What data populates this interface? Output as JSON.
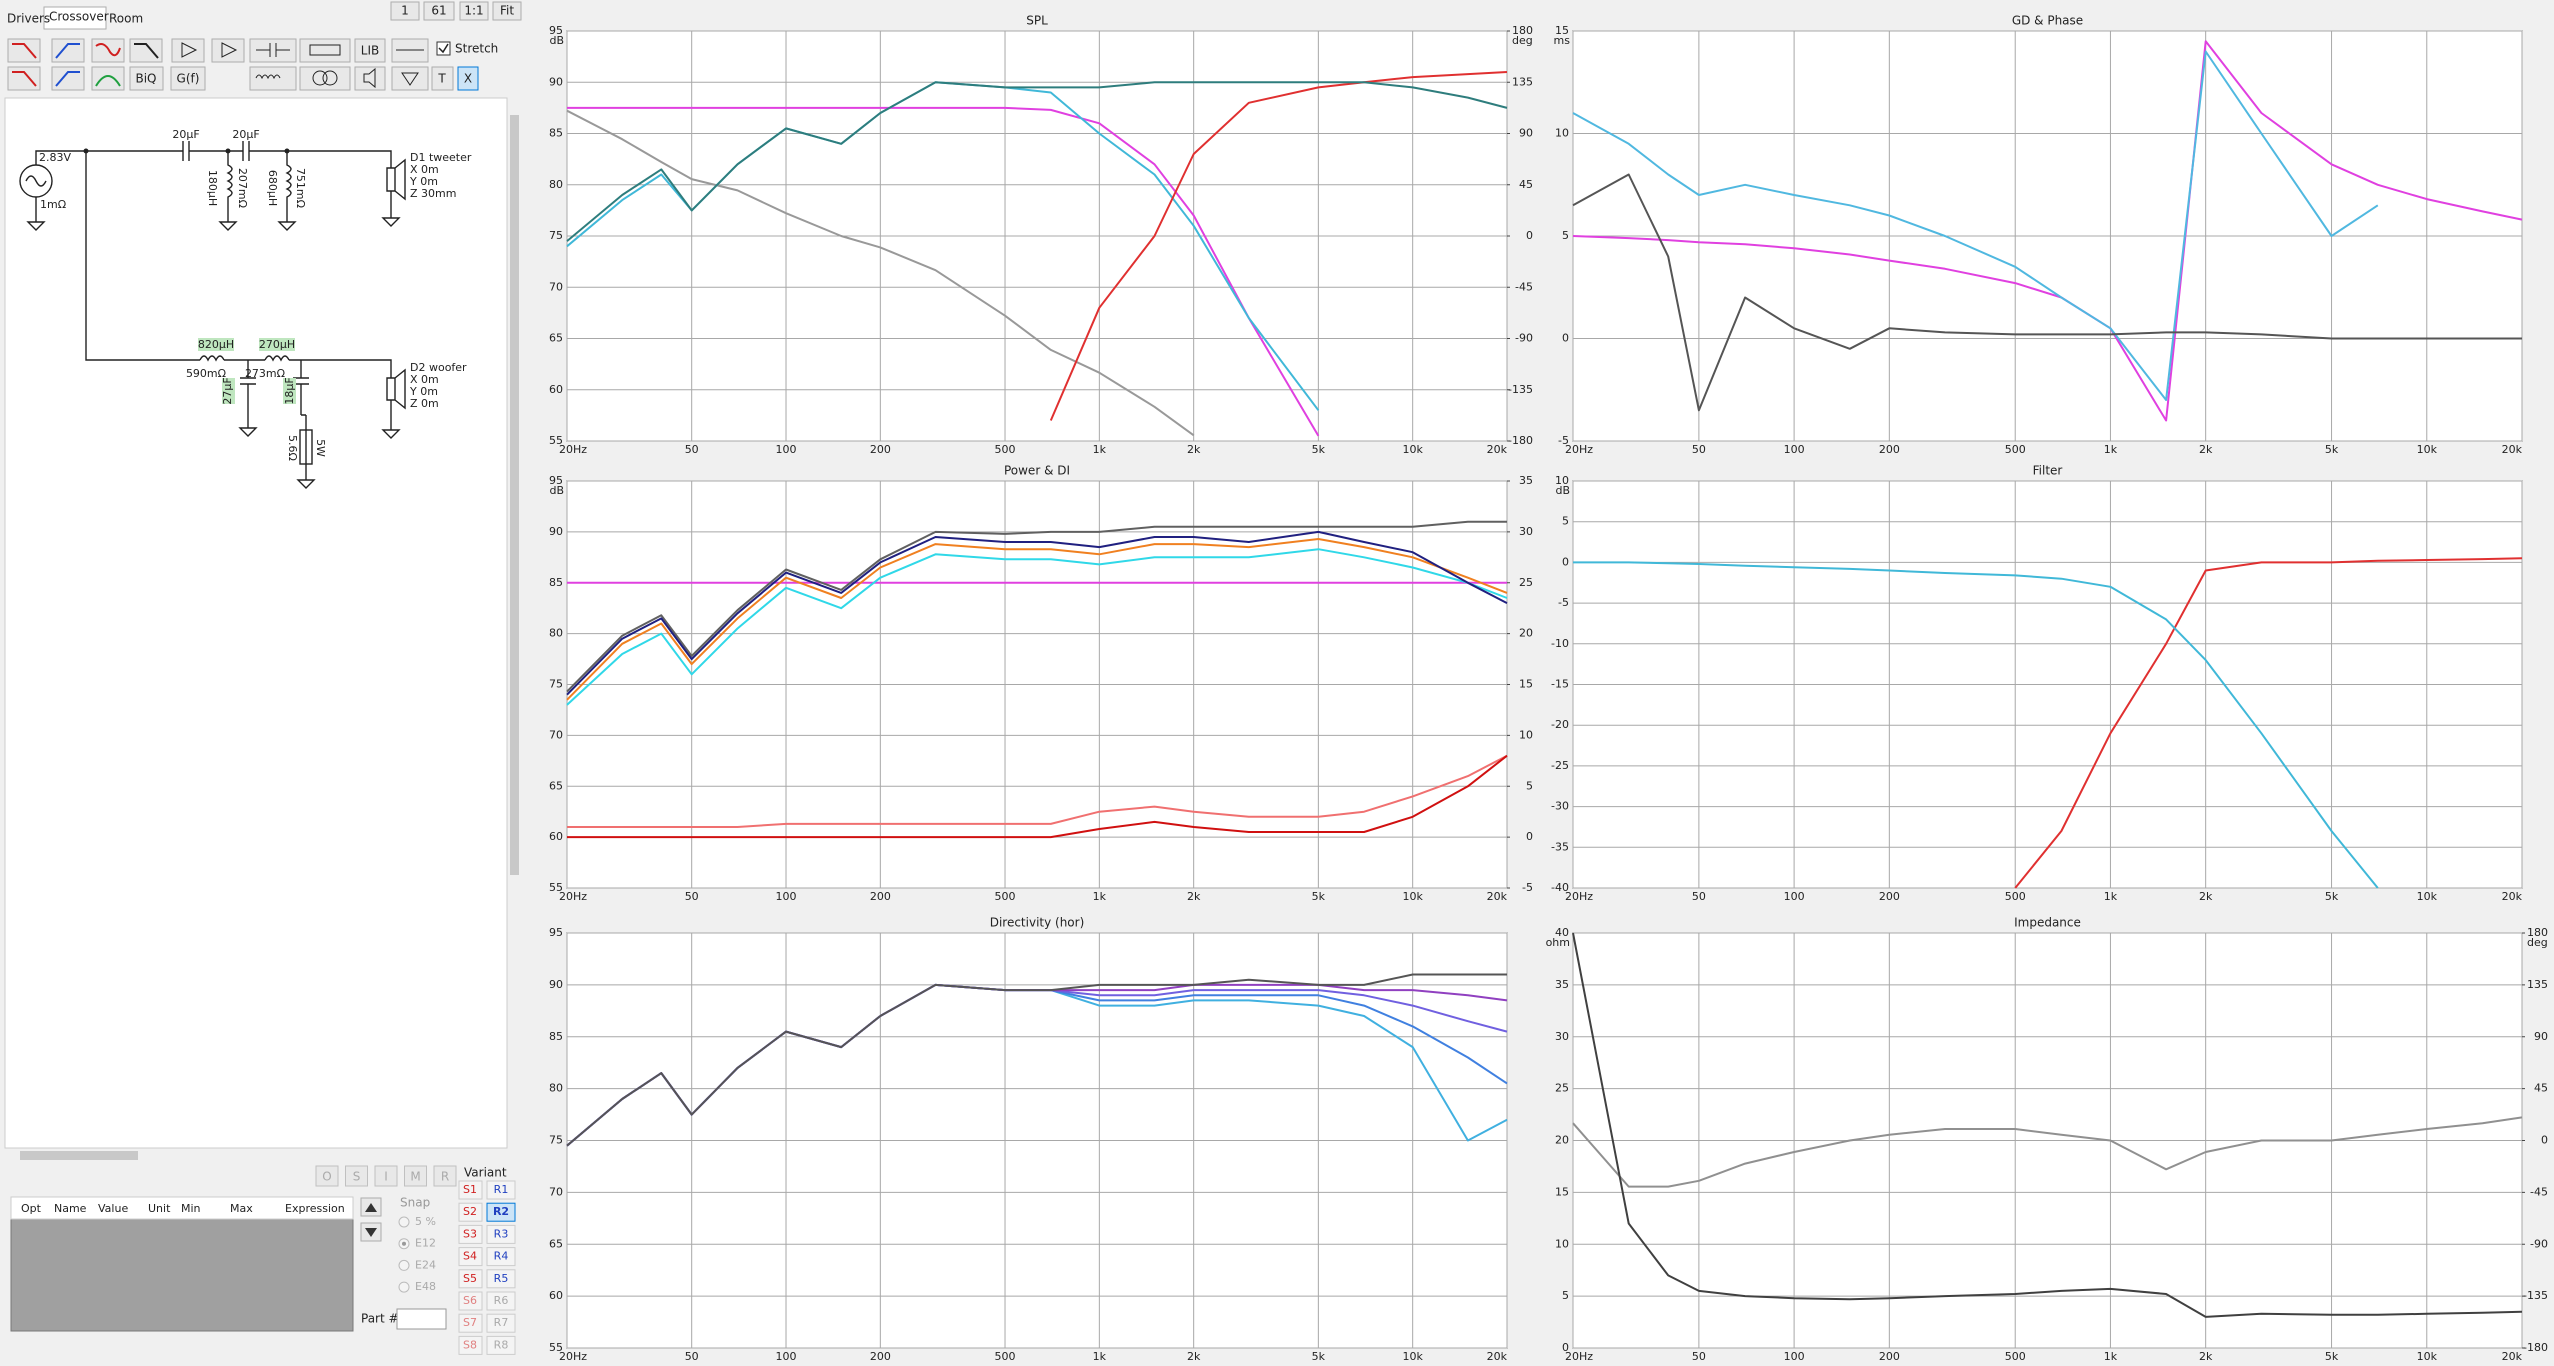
{
  "ui": {
    "tabs": [
      "Drivers",
      "Crossover",
      "Room"
    ],
    "view_buttons": [
      "1",
      "61",
      "1:1",
      "Fit"
    ],
    "stretch": "Stretch",
    "toolbar_buttons": [
      "LIB",
      "BiQ",
      "G(f)",
      "T",
      "X"
    ],
    "circuit": {
      "source": "2.83V",
      "source_r": "1mΩ",
      "c1": "20µF",
      "c2": "20µF",
      "l1": "180µH",
      "l1_r": "207mΩ",
      "l2": "680µH",
      "l2_r": "751mΩ",
      "d1": {
        "name": "D1 tweeter",
        "x": "X 0m",
        "y": "Y 0m",
        "z": "Z 30mm"
      },
      "l3": "820µH",
      "l3_r": "590mΩ",
      "l4": "270µH",
      "l4_r": "273mΩ",
      "c3": "27µF",
      "c4": "18µF",
      "r1": "5.6Ω",
      "r1_p": "5W",
      "d2": {
        "name": "D2 woofer",
        "x": "X 0m",
        "y": "Y 0m",
        "z": "Z 0m"
      }
    },
    "opt_buttons": [
      "O",
      "S",
      "I",
      "M",
      "R"
    ],
    "table_headers": [
      "Opt",
      "Name",
      "Value",
      "Unit",
      "Min",
      "Max",
      "Expression"
    ],
    "variant": "Variant",
    "s_buttons": [
      "S1",
      "S2",
      "S3",
      "S4",
      "S5",
      "S6",
      "S7",
      "S8"
    ],
    "r_buttons": [
      "R1",
      "R2",
      "R3",
      "R4",
      "R5",
      "R6",
      "R7",
      "R8"
    ],
    "snap": "Snap",
    "snap_options": [
      "5 %",
      "E12",
      "E24",
      "E48"
    ],
    "part": "Part #"
  },
  "chart_data": [
    {
      "type": "line",
      "title": "SPL",
      "y_unit": "dB",
      "y2_unit": "deg",
      "xscale": "log",
      "xlim": [
        20,
        20000
      ],
      "xticks": [
        {
          "value": 20,
          "label": "20Hz"
        },
        50,
        100,
        200,
        500,
        {
          "value": 1000,
          "label": "1k"
        },
        {
          "value": 2000,
          "label": "2k"
        },
        {
          "value": 5000,
          "label": "5k"
        },
        {
          "value": 10000,
          "label": "10k"
        },
        {
          "value": 20000,
          "label": "20k"
        }
      ],
      "ylim": [
        55,
        95
      ],
      "yticks": [
        55,
        60,
        65,
        70,
        75,
        80,
        85,
        90,
        95
      ],
      "y2lim": [
        -180,
        180
      ],
      "y2ticks": [
        -180,
        -135,
        -90,
        -45,
        0,
        45,
        90,
        135,
        180
      ],
      "grid": true,
      "x": [
        20,
        30,
        40,
        50,
        70,
        100,
        150,
        200,
        300,
        500,
        700,
        1000,
        1500,
        2000,
        3000,
        5000,
        7000,
        10000,
        15000,
        20000
      ],
      "series": [
        {
          "color": "#999999",
          "axis": "y2",
          "values": [
            110,
            85,
            65,
            50,
            40,
            20,
            0,
            -10,
            -30,
            -70,
            -100,
            -120,
            -150,
            -175,
            null,
            null,
            null,
            null,
            null,
            null
          ]
        },
        {
          "color": "#e040e0",
          "values": [
            87.5,
            87.5,
            87.5,
            87.5,
            87.5,
            87.5,
            87.5,
            87.5,
            87.5,
            87.5,
            87.3,
            86,
            82,
            77,
            67,
            55.5,
            null,
            null,
            null,
            null
          ]
        },
        {
          "color": "#40b8d8",
          "values": [
            74,
            78.5,
            81,
            77.5,
            82,
            85.5,
            84,
            87,
            90,
            89.5,
            89,
            85,
            81,
            76,
            67,
            58,
            null,
            null,
            null,
            null
          ]
        },
        {
          "color": "#e03030",
          "values": [
            null,
            null,
            null,
            null,
            null,
            null,
            null,
            null,
            null,
            null,
            57,
            68,
            75,
            83,
            88,
            89.5,
            90,
            90.5,
            90.8,
            91
          ]
        },
        {
          "color": "#2e7d7d",
          "values": [
            74.5,
            79,
            81.5,
            77.5,
            82,
            85.5,
            84,
            87,
            90,
            89.5,
            89.5,
            89.5,
            90,
            90,
            90,
            90,
            90,
            89.5,
            88.5,
            87.5
          ]
        }
      ]
    },
    {
      "type": "line",
      "title": "GD & Phase",
      "y_unit": "ms",
      "xscale": "log",
      "xlim": [
        20,
        20000
      ],
      "xticks": [
        {
          "value": 20,
          "label": "20Hz"
        },
        50,
        100,
        200,
        500,
        {
          "value": 1000,
          "label": "1k"
        },
        {
          "value": 2000,
          "label": "2k"
        },
        {
          "value": 5000,
          "label": "5k"
        },
        {
          "value": 10000,
          "label": "10k"
        },
        {
          "value": 20000,
          "label": "20k"
        }
      ],
      "ylim": [
        -5,
        15
      ],
      "yticks": [
        -5,
        0,
        5,
        10,
        15
      ],
      "grid": true,
      "x": [
        20,
        30,
        40,
        50,
        70,
        100,
        150,
        200,
        300,
        500,
        700,
        1000,
        1500,
        2000,
        3000,
        5000,
        7000,
        10000,
        15000,
        20000
      ],
      "series": [
        {
          "color": "#e040e0",
          "values": [
            5,
            4.9,
            4.8,
            4.7,
            4.6,
            4.4,
            4.1,
            3.8,
            3.4,
            2.7,
            2,
            0.5,
            -4,
            14.5,
            11,
            8.5,
            7.5,
            6.8,
            6.2,
            5.8
          ]
        },
        {
          "color": "#50b8e0",
          "values": [
            11,
            9.5,
            8,
            7,
            7.5,
            7,
            6.5,
            6,
            5,
            3.5,
            2,
            0.5,
            -3,
            14,
            10,
            5,
            6.5,
            null,
            null,
            null
          ]
        },
        {
          "color": "#555555",
          "values": [
            6.5,
            8,
            4,
            -3.5,
            2,
            0.5,
            -0.5,
            0.5,
            0.3,
            0.2,
            0.2,
            0.2,
            0.3,
            0.3,
            0.2,
            0,
            0,
            0,
            0,
            0
          ]
        }
      ]
    },
    {
      "type": "line",
      "title": "Power & DI",
      "y_unit": "dB",
      "xscale": "log",
      "xlim": [
        20,
        20000
      ],
      "xticks": [
        {
          "value": 20,
          "label": "20Hz"
        },
        50,
        100,
        200,
        500,
        {
          "value": 1000,
          "label": "1k"
        },
        {
          "value": 2000,
          "label": "2k"
        },
        {
          "value": 5000,
          "label": "5k"
        },
        {
          "value": 10000,
          "label": "10k"
        },
        {
          "value": 20000,
          "label": "20k"
        }
      ],
      "ylim": [
        55,
        95
      ],
      "yticks": [
        55,
        60,
        65,
        70,
        75,
        80,
        85,
        90,
        95
      ],
      "y2lim": [
        -5,
        35
      ],
      "y2ticks": [
        -5,
        0,
        5,
        10,
        15,
        20,
        25,
        30,
        35
      ],
      "grid": true,
      "x": [
        20,
        30,
        40,
        50,
        70,
        100,
        150,
        200,
        300,
        500,
        700,
        1000,
        1500,
        2000,
        3000,
        5000,
        7000,
        10000,
        15000,
        20000
      ],
      "series": [
        {
          "color": "#e040e0",
          "values": [
            85,
            85,
            85,
            85,
            85,
            85,
            85,
            85,
            85,
            85,
            85,
            85,
            85,
            85,
            85,
            85,
            85,
            85,
            85,
            85
          ]
        },
        {
          "color": "#f07070",
          "axis": "y2",
          "values": [
            1,
            1,
            1,
            1,
            1,
            1.3,
            1.3,
            1.3,
            1.3,
            1.3,
            1.3,
            2.5,
            3,
            2.5,
            2,
            2,
            2.5,
            4,
            6,
            8
          ]
        },
        {
          "color": "#d01010",
          "axis": "y2",
          "values": [
            0,
            0,
            0,
            0,
            0,
            0,
            0,
            0,
            0,
            0,
            0,
            0.8,
            1.5,
            1,
            0.5,
            0.5,
            0.5,
            2,
            5,
            8
          ]
        },
        {
          "color": "#30d8e8",
          "values": [
            73,
            78,
            80,
            76,
            80.5,
            84.5,
            82.5,
            85.5,
            87.8,
            87.3,
            87.3,
            86.8,
            87.5,
            87.5,
            87.5,
            88.3,
            87.5,
            86.5,
            85,
            83.5
          ]
        },
        {
          "color": "#f08020",
          "values": [
            73.5,
            79,
            81,
            77,
            81.5,
            85.5,
            83.5,
            86.5,
            88.8,
            88.3,
            88.3,
            87.8,
            88.8,
            88.8,
            88.5,
            89.3,
            88.5,
            87.5,
            85.5,
            84
          ]
        },
        {
          "color": "#606060",
          "values": [
            74.3,
            79.8,
            81.8,
            77.8,
            82.3,
            86.3,
            84.3,
            87.3,
            90,
            89.8,
            90,
            90,
            90.5,
            90.5,
            90.5,
            90.5,
            90.5,
            90.5,
            91,
            91
          ]
        },
        {
          "color": "#202080",
          "values": [
            74,
            79.5,
            81.5,
            77.5,
            82,
            86,
            84,
            87,
            89.5,
            89,
            89,
            88.5,
            89.5,
            89.5,
            89,
            90,
            89,
            88,
            85,
            83
          ]
        }
      ]
    },
    {
      "type": "line",
      "title": "Filter",
      "y_unit": "dB",
      "xscale": "log",
      "xlim": [
        20,
        20000
      ],
      "xticks": [
        {
          "value": 20,
          "label": "20Hz"
        },
        50,
        100,
        200,
        500,
        {
          "value": 1000,
          "label": "1k"
        },
        {
          "value": 2000,
          "label": "2k"
        },
        {
          "value": 5000,
          "label": "5k"
        },
        {
          "value": 10000,
          "label": "10k"
        },
        {
          "value": 20000,
          "label": "20k"
        }
      ],
      "ylim": [
        -40,
        10
      ],
      "yticks": [
        -40,
        -35,
        -30,
        -25,
        -20,
        -15,
        -10,
        -5,
        0,
        5,
        10
      ],
      "grid": true,
      "x": [
        20,
        30,
        40,
        50,
        70,
        100,
        150,
        200,
        300,
        500,
        700,
        1000,
        1500,
        2000,
        3000,
        5000,
        7000,
        10000,
        15000,
        20000
      ],
      "series": [
        {
          "color": "#e03030",
          "values": [
            null,
            null,
            null,
            null,
            null,
            null,
            null,
            null,
            null,
            -40,
            -33,
            -21,
            -10,
            -1,
            0,
            0,
            0.2,
            0.3,
            0.4,
            0.5
          ]
        },
        {
          "color": "#40b8d8",
          "values": [
            0,
            0,
            -0.1,
            -0.2,
            -0.4,
            -0.6,
            -0.8,
            -1,
            -1.3,
            -1.6,
            -2,
            -3,
            -7,
            -12,
            -21,
            -33,
            -40,
            null,
            null,
            null
          ]
        }
      ]
    },
    {
      "type": "line",
      "title": "Directivity (hor)",
      "xscale": "log",
      "xlim": [
        20,
        20000
      ],
      "xticks": [
        {
          "value": 20,
          "label": "20Hz"
        },
        50,
        100,
        200,
        500,
        {
          "value": 1000,
          "label": "1k"
        },
        {
          "value": 2000,
          "label": "2k"
        },
        {
          "value": 5000,
          "label": "5k"
        },
        {
          "value": 10000,
          "label": "10k"
        },
        {
          "value": 20000,
          "label": "20k"
        }
      ],
      "ylim": [
        55,
        95
      ],
      "yticks": [
        55,
        60,
        65,
        70,
        75,
        80,
        85,
        90,
        95
      ],
      "grid": true,
      "x": [
        20,
        30,
        40,
        50,
        70,
        100,
        150,
        200,
        300,
        500,
        700,
        1000,
        1500,
        2000,
        3000,
        5000,
        7000,
        10000,
        15000,
        20000
      ],
      "series": [
        {
          "color": "#40b0e0",
          "values": [
            74.5,
            79,
            81.5,
            77.5,
            82,
            85.5,
            84,
            87,
            90,
            89.5,
            89.5,
            88,
            88,
            88.5,
            88.5,
            88,
            87,
            84,
            75,
            77
          ]
        },
        {
          "color": "#4080e0",
          "values": [
            74.5,
            79,
            81.5,
            77.5,
            82,
            85.5,
            84,
            87,
            90,
            89.5,
            89.5,
            88.5,
            88.5,
            89,
            89,
            89,
            88,
            86,
            83,
            80.5
          ]
        },
        {
          "color": "#7060e0",
          "values": [
            74.5,
            79,
            81.5,
            77.5,
            82,
            85.5,
            84,
            87,
            90,
            89.5,
            89.5,
            89,
            89,
            89.5,
            89.5,
            89.5,
            89,
            88,
            86.5,
            85.5
          ]
        },
        {
          "color": "#9040c0",
          "values": [
            74.5,
            79,
            81.5,
            77.5,
            82,
            85.5,
            84,
            87,
            90,
            89.5,
            89.5,
            89.5,
            89.5,
            90,
            90,
            90,
            89.5,
            89.5,
            89,
            88.5
          ]
        },
        {
          "color": "#555555",
          "values": [
            74.5,
            79,
            81.5,
            77.5,
            82,
            85.5,
            84,
            87,
            90,
            89.5,
            89.5,
            90,
            90,
            90,
            90.5,
            90,
            90,
            91,
            91,
            91
          ]
        }
      ]
    },
    {
      "type": "line",
      "title": "Impedance",
      "y_unit": "ohm",
      "y2_unit": "deg",
      "xscale": "log",
      "xlim": [
        20,
        20000
      ],
      "xticks": [
        {
          "value": 20,
          "label": "20Hz"
        },
        50,
        100,
        200,
        500,
        {
          "value": 1000,
          "label": "1k"
        },
        {
          "value": 2000,
          "label": "2k"
        },
        {
          "value": 5000,
          "label": "5k"
        },
        {
          "value": 10000,
          "label": "10k"
        },
        {
          "value": 20000,
          "label": "20k"
        }
      ],
      "ylim": [
        0,
        40
      ],
      "yticks": [
        0,
        5,
        10,
        15,
        20,
        25,
        30,
        35,
        40
      ],
      "y2lim": [
        -180,
        180
      ],
      "y2ticks": [
        -180,
        -135,
        -90,
        -45,
        0,
        45,
        90,
        135,
        180
      ],
      "grid": true,
      "x": [
        20,
        30,
        40,
        50,
        70,
        100,
        150,
        200,
        300,
        500,
        700,
        1000,
        1500,
        2000,
        3000,
        5000,
        7000,
        10000,
        15000,
        20000
      ],
      "series": [
        {
          "color": "#909090",
          "axis": "y2",
          "values": [
            15,
            -40,
            -40,
            -35,
            -20,
            -10,
            0,
            5,
            10,
            10,
            5,
            0,
            -25,
            -10,
            0,
            0,
            5,
            10,
            15,
            20
          ]
        },
        {
          "color": "#404040",
          "values": [
            40,
            12,
            7,
            5.5,
            5,
            4.8,
            4.7,
            4.8,
            5,
            5.2,
            5.5,
            5.7,
            5.2,
            3,
            3.3,
            3.2,
            3.2,
            3.3,
            3.4,
            3.5
          ]
        }
      ]
    }
  ]
}
